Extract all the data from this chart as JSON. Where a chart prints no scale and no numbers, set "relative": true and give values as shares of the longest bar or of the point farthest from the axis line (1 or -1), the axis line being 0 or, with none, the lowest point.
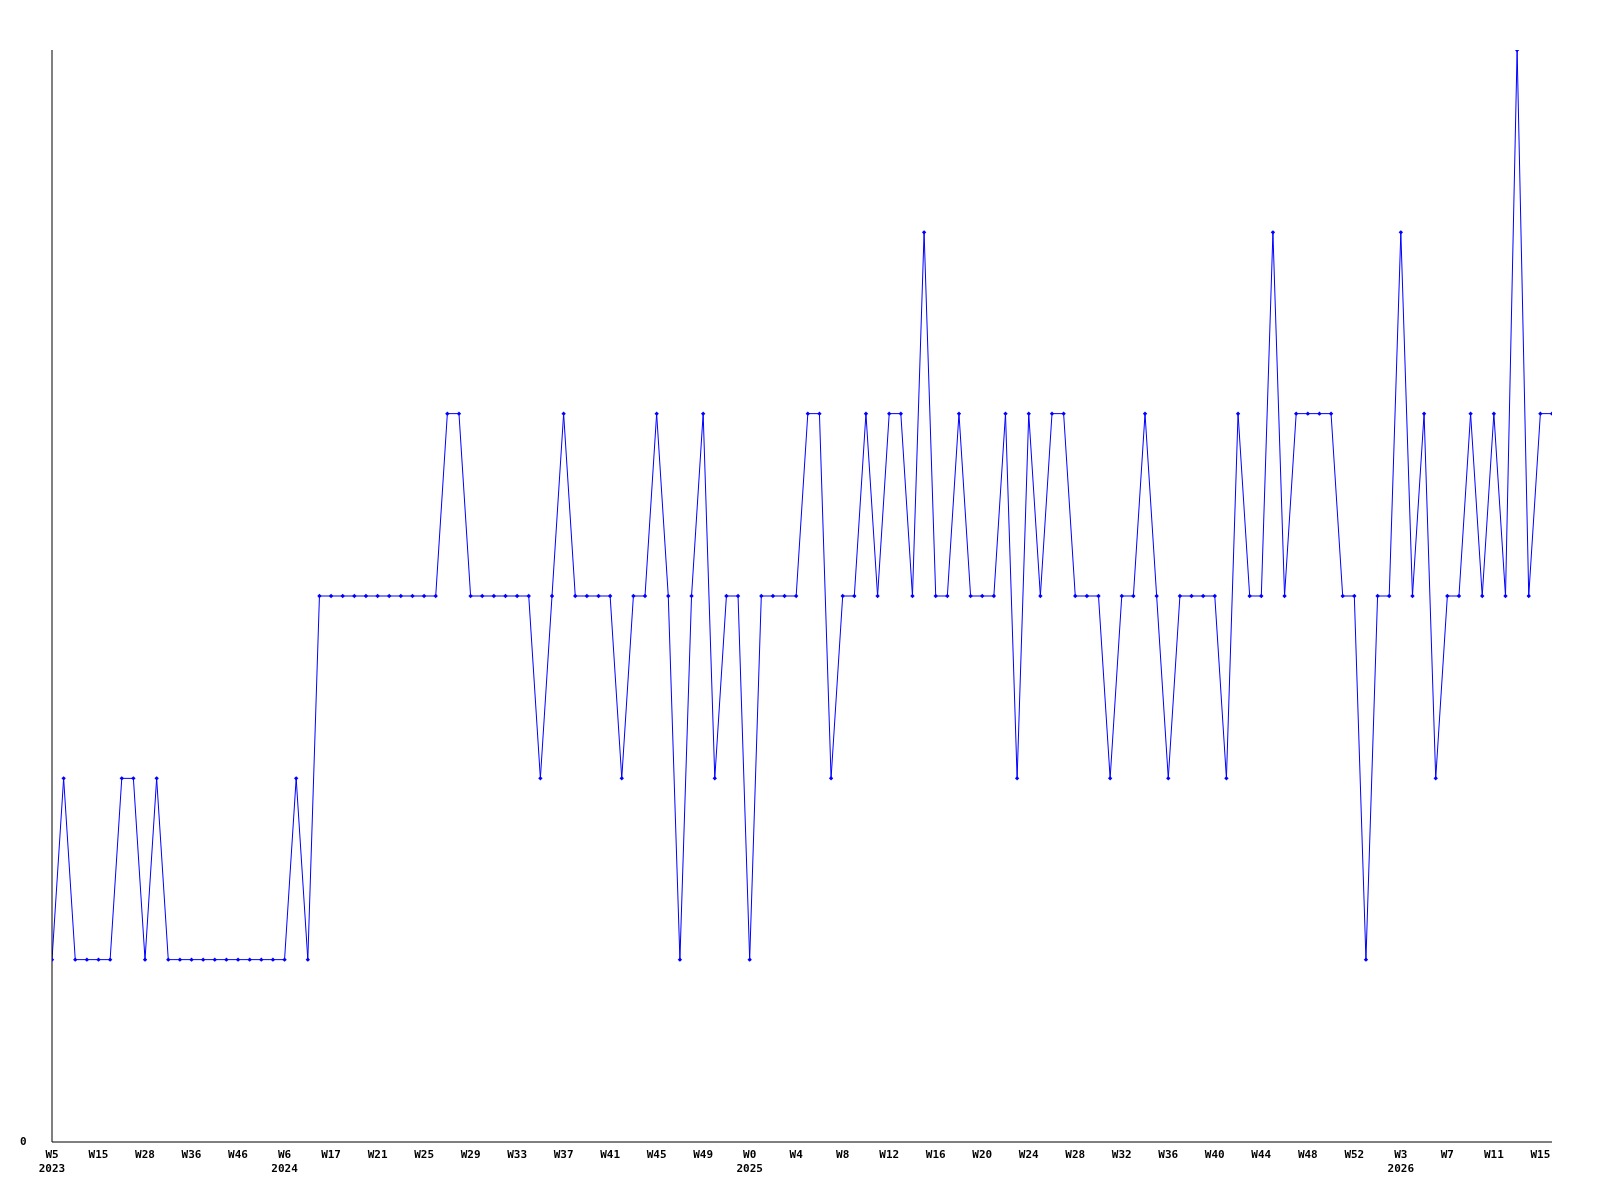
{
  "chart_data": {
    "type": "line",
    "relative": true,
    "annotations": [
      "0"
    ],
    "marker": "diamond",
    "grid": false,
    "legend": false,
    "categories": [
      "W5\n2023",
      null,
      null,
      null,
      "W15",
      null,
      null,
      null,
      "W28",
      null,
      null,
      null,
      "W36",
      null,
      null,
      null,
      "W46",
      null,
      null,
      null,
      "W6\n2024",
      null,
      null,
      null,
      "W17",
      null,
      null,
      null,
      "W21",
      null,
      null,
      null,
      "W25",
      null,
      null,
      null,
      "W29",
      null,
      null,
      null,
      "W33",
      null,
      null,
      null,
      "W37",
      null,
      null,
      null,
      "W41",
      null,
      null,
      null,
      "W45",
      null,
      null,
      null,
      "W49",
      null,
      null,
      null,
      "W0\n2025",
      null,
      null,
      null,
      "W4",
      null,
      null,
      null,
      "W8",
      null,
      null,
      null,
      "W12",
      null,
      null,
      null,
      "W16",
      null,
      null,
      null,
      "W20",
      null,
      null,
      null,
      "W24",
      null,
      null,
      null,
      "W28",
      null,
      null,
      null,
      "W32",
      null,
      null,
      null,
      "W36",
      null,
      null,
      null,
      "W40",
      null,
      null,
      null,
      "W44",
      null,
      null,
      null,
      "W48",
      null,
      null,
      null,
      "W52",
      null,
      null,
      null,
      "W3\n2026",
      null,
      null,
      null,
      "W7",
      null,
      null,
      null,
      "W11",
      null,
      null,
      null,
      "W15",
      null
    ],
    "series": [
      {
        "color": "#0000ff",
        "values": [
          0.167,
          0.333,
          0.167,
          0.167,
          0.167,
          0.167,
          0.333,
          0.333,
          0.167,
          0.333,
          0.167,
          0.167,
          0.167,
          0.167,
          0.167,
          0.167,
          0.167,
          0.167,
          0.167,
          0.167,
          0.167,
          0.333,
          0.167,
          0.5,
          0.5,
          0.5,
          0.5,
          0.5,
          0.5,
          0.5,
          0.5,
          0.5,
          0.5,
          0.5,
          0.667,
          0.667,
          0.5,
          0.5,
          0.5,
          0.5,
          0.5,
          0.5,
          0.333,
          0.5,
          0.667,
          0.5,
          0.5,
          0.5,
          0.5,
          0.333,
          0.5,
          0.5,
          0.667,
          0.5,
          0.167,
          0.5,
          0.667,
          0.333,
          0.5,
          0.5,
          0.167,
          0.5,
          0.5,
          0.5,
          0.5,
          0.667,
          0.667,
          0.333,
          0.5,
          0.5,
          0.667,
          0.5,
          0.667,
          0.667,
          0.5,
          0.833,
          0.5,
          0.5,
          0.667,
          0.5,
          0.5,
          0.5,
          0.667,
          0.333,
          0.667,
          0.5,
          0.667,
          0.667,
          0.5,
          0.5,
          0.5,
          0.333,
          0.5,
          0.5,
          0.667,
          0.5,
          0.333,
          0.5,
          0.5,
          0.5,
          0.5,
          0.333,
          0.667,
          0.5,
          0.5,
          0.833,
          0.5,
          0.667,
          0.667,
          0.667,
          0.667,
          0.5,
          0.5,
          0.167,
          0.5,
          0.5,
          0.833,
          0.5,
          0.667,
          0.333,
          0.5,
          0.5,
          0.667,
          0.5,
          0.667,
          0.5,
          1,
          0.5,
          0.667,
          0.667
        ]
      }
    ]
  }
}
